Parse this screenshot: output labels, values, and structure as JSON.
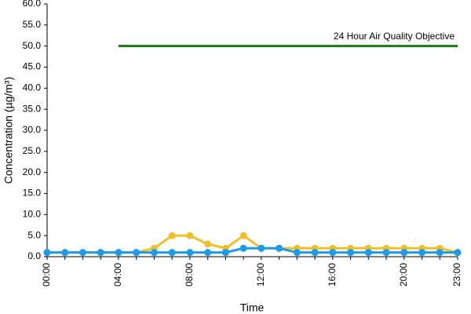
{
  "chart_data": {
    "type": "line",
    "y_axis_label": "Concentration (µg/m³)",
    "x_axis_label": "Time",
    "categories": [
      "00:00",
      null,
      null,
      null,
      "04:00",
      null,
      null,
      null,
      "08:00",
      null,
      null,
      null,
      "12:00",
      null,
      null,
      null,
      "16:00",
      null,
      null,
      null,
      "20:00",
      null,
      null,
      "23:00"
    ],
    "series": [
      {
        "color": "#1a7a1a",
        "markers": false,
        "values": [
          null,
          null,
          null,
          null,
          50,
          50,
          50,
          50,
          50,
          50,
          50,
          50,
          50,
          50,
          50,
          50,
          50,
          50,
          50,
          50,
          50,
          50,
          50,
          50
        ]
      },
      {
        "color": "#f0c02c",
        "markers": true,
        "values": [
          1,
          1,
          1,
          1,
          1,
          1,
          2,
          5,
          5,
          3,
          2,
          5,
          2,
          2,
          2,
          2,
          2,
          2,
          2,
          2,
          2,
          2,
          2,
          1
        ]
      },
      {
        "color": "#1e9be8",
        "markers": true,
        "values": [
          1,
          1,
          1,
          1,
          1,
          1,
          1,
          1,
          1,
          1,
          1,
          2,
          2,
          2,
          1,
          1,
          1,
          1,
          1,
          1,
          1,
          1,
          1,
          1
        ]
      }
    ],
    "annotation": "24 Hour Air Quality Objective",
    "ylim": [
      0,
      60
    ],
    "yticks": [
      {
        "value": 0,
        "label": "0.0"
      },
      {
        "value": 5,
        "label": "5.0"
      },
      {
        "value": 10,
        "label": "10.0"
      },
      {
        "value": 15,
        "label": "15.0"
      },
      {
        "value": 20,
        "label": "20.0"
      },
      {
        "value": 25,
        "label": "25.0"
      },
      {
        "value": 30,
        "label": "30.0"
      },
      {
        "value": 35,
        "label": "35.0"
      },
      {
        "value": 40,
        "label": "40.0"
      },
      {
        "value": 45,
        "label": "45.0"
      },
      {
        "value": 50,
        "label": "50.0"
      },
      {
        "value": 55,
        "label": "55.0"
      },
      {
        "value": 60,
        "label": "60.0"
      }
    ]
  }
}
